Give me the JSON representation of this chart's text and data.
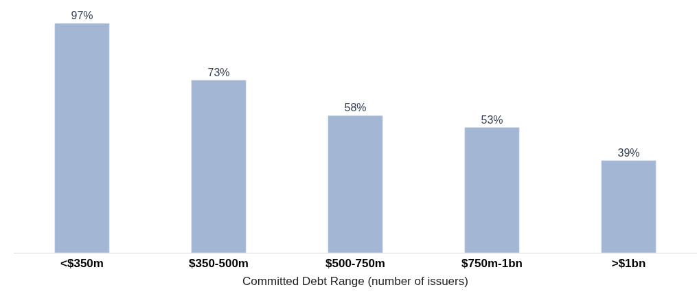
{
  "chart_data": {
    "type": "bar",
    "xlabel": "Committed Debt Range (number of issuers)",
    "categories": [
      "<$350m",
      "$350-500m",
      "$500-750m",
      "$750m-1bn",
      ">$1bn"
    ],
    "values": [
      97,
      73,
      58,
      53,
      39
    ],
    "value_labels": [
      "97%",
      "73%",
      "58%",
      "53%",
      "39%"
    ],
    "color": "#a3b7d4"
  }
}
